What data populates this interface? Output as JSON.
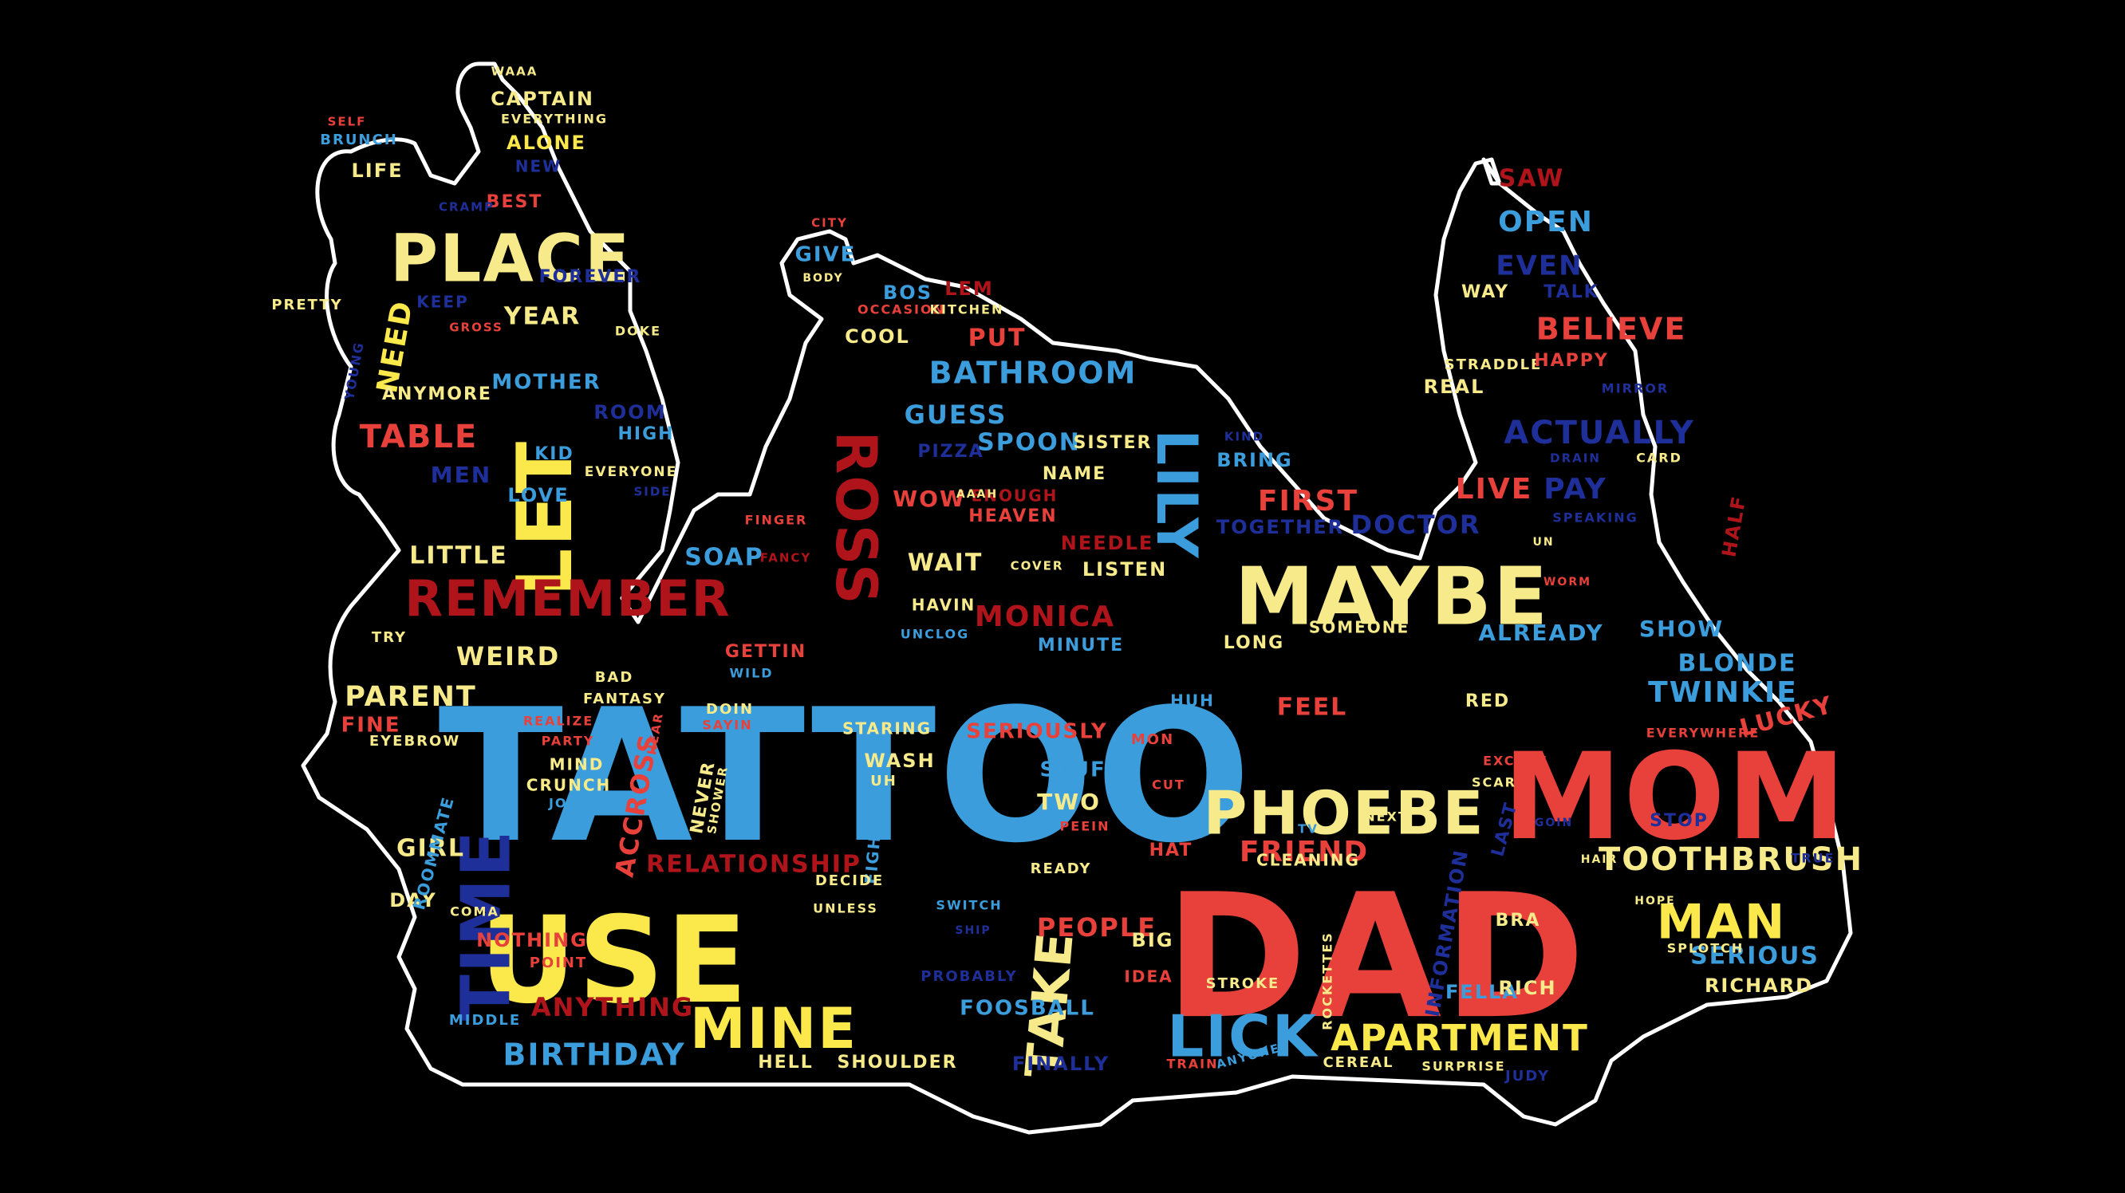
{
  "palette": {
    "background": "#000000",
    "outline": "#ffffff",
    "red": "#e8403a",
    "dark_red": "#b0141b",
    "yellow": "#fbe84b",
    "pale_yellow": "#f7ea8a",
    "blue": "#3b9ddb",
    "navy": "#1f2f9a"
  },
  "words": [
    {
      "text": "TATTOO",
      "color": "blue"
    },
    {
      "text": "DAD",
      "color": "red"
    },
    {
      "text": "MOM",
      "color": "red"
    },
    {
      "text": "USE",
      "color": "yellow"
    },
    {
      "text": "MAYBE",
      "color": "pale_yellow"
    },
    {
      "text": "PLACE",
      "color": "pale_yellow"
    },
    {
      "text": "LET",
      "color": "yellow"
    },
    {
      "text": "TIME",
      "color": "navy"
    },
    {
      "text": "REMEMBER",
      "color": "dark_red"
    },
    {
      "text": "ROSS",
      "color": "dark_red"
    },
    {
      "text": "LILY",
      "color": "blue"
    },
    {
      "text": "TAKE",
      "color": "pale_yellow"
    },
    {
      "text": "PHOEBE",
      "color": "pale_yellow"
    },
    {
      "text": "MINE",
      "color": "yellow"
    },
    {
      "text": "LICK",
      "color": "blue"
    },
    {
      "text": "MAN",
      "color": "yellow"
    },
    {
      "text": "APARTMENT",
      "color": "yellow"
    },
    {
      "text": "TOOTHBRUSH",
      "color": "pale_yellow"
    },
    {
      "text": "BATHROOM",
      "color": "blue"
    },
    {
      "text": "BIRTHDAY",
      "color": "blue"
    },
    {
      "text": "RELATIONSHIP",
      "color": "dark_red"
    },
    {
      "text": "ACTUALLY",
      "color": "navy"
    },
    {
      "text": "BELIEVE",
      "color": "red"
    },
    {
      "text": "TWINKIE",
      "color": "blue"
    },
    {
      "text": "MONICA",
      "color": "dark_red"
    },
    {
      "text": "FRIEND",
      "color": "red"
    },
    {
      "text": "TABLE",
      "color": "red"
    },
    {
      "text": "PARENT",
      "color": "pale_yellow"
    },
    {
      "text": "SERIOUS",
      "color": "blue"
    },
    {
      "text": "RICHARD",
      "color": "pale_yellow"
    },
    {
      "text": "PEOPLE",
      "color": "red"
    },
    {
      "text": "ANYTHING",
      "color": "dark_red"
    },
    {
      "text": "OPEN",
      "color": "blue"
    },
    {
      "text": "EVEN",
      "color": "navy"
    },
    {
      "text": "SAW",
      "color": "dark_red"
    },
    {
      "text": "LIVE",
      "color": "red"
    },
    {
      "text": "PAY",
      "color": "navy"
    },
    {
      "text": "FIRST",
      "color": "red"
    },
    {
      "text": "DOCTOR",
      "color": "navy"
    },
    {
      "text": "ALREADY",
      "color": "blue"
    },
    {
      "text": "SHOW",
      "color": "blue"
    },
    {
      "text": "BLONDE",
      "color": "blue"
    },
    {
      "text": "LUCKY",
      "color": "red"
    },
    {
      "text": "HALF",
      "color": "dark_red"
    },
    {
      "text": "FEEL",
      "color": "red"
    },
    {
      "text": "RED",
      "color": "pale_yellow"
    },
    {
      "text": "HUH",
      "color": "blue"
    },
    {
      "text": "WEIRD",
      "color": "pale_yellow"
    },
    {
      "text": "LITTLE",
      "color": "pale_yellow"
    },
    {
      "text": "GIRL",
      "color": "pale_yellow"
    },
    {
      "text": "DAY",
      "color": "pale_yellow"
    },
    {
      "text": "FINE",
      "color": "red"
    },
    {
      "text": "EYEBROW",
      "color": "pale_yellow"
    },
    {
      "text": "YEAR",
      "color": "pale_yellow"
    },
    {
      "text": "NEED",
      "color": "yellow"
    },
    {
      "text": "MOTHER",
      "color": "blue"
    },
    {
      "text": "ANYMORE",
      "color": "pale_yellow"
    },
    {
      "text": "ROOM",
      "color": "navy"
    },
    {
      "text": "HIGH",
      "color": "blue"
    },
    {
      "text": "KID",
      "color": "blue"
    },
    {
      "text": "EVERYONE",
      "color": "pale_yellow"
    },
    {
      "text": "MEN",
      "color": "navy"
    },
    {
      "text": "LOVE",
      "color": "blue"
    },
    {
      "text": "SIDE",
      "color": "navy"
    },
    {
      "text": "CAPTAIN",
      "color": "pale_yellow"
    },
    {
      "text": "EVERYTHING",
      "color": "pale_yellow"
    },
    {
      "text": "ALONE",
      "color": "yellow"
    },
    {
      "text": "NEW",
      "color": "navy"
    },
    {
      "text": "WAAA",
      "color": "pale_yellow"
    },
    {
      "text": "SELF",
      "color": "red"
    },
    {
      "text": "BRUNCH",
      "color": "blue"
    },
    {
      "text": "LIFE",
      "color": "pale_yellow"
    },
    {
      "text": "BEST",
      "color": "red"
    },
    {
      "text": "CRAMP",
      "color": "navy"
    },
    {
      "text": "FOREVER",
      "color": "navy"
    },
    {
      "text": "KEEP",
      "color": "navy"
    },
    {
      "text": "PRETTY",
      "color": "pale_yellow"
    },
    {
      "text": "GROSS",
      "color": "red"
    },
    {
      "text": "DOKE",
      "color": "pale_yellow"
    },
    {
      "text": "YOUNG",
      "color": "navy"
    },
    {
      "text": "GIVE",
      "color": "blue"
    },
    {
      "text": "CITY",
      "color": "red"
    },
    {
      "text": "BODY",
      "color": "pale_yellow"
    },
    {
      "text": "BOS",
      "color": "blue"
    },
    {
      "text": "LEM",
      "color": "dark_red"
    },
    {
      "text": "OCCASION",
      "color": "red"
    },
    {
      "text": "KITCHEN",
      "color": "pale_yellow"
    },
    {
      "text": "COOL",
      "color": "pale_yellow"
    },
    {
      "text": "PUT",
      "color": "red"
    },
    {
      "text": "GUESS",
      "color": "blue"
    },
    {
      "text": "SPOON",
      "color": "blue"
    },
    {
      "text": "PIZZA",
      "color": "navy"
    },
    {
      "text": "SISTER",
      "color": "pale_yellow"
    },
    {
      "text": "NAME",
      "color": "pale_yellow"
    },
    {
      "text": "WOW",
      "color": "red"
    },
    {
      "text": "ENOUGH",
      "color": "dark_red"
    },
    {
      "text": "HEAVEN",
      "color": "red"
    },
    {
      "text": "SOAP",
      "color": "blue"
    },
    {
      "text": "FINGER",
      "color": "red"
    },
    {
      "text": "FANCY",
      "color": "dark_red"
    },
    {
      "text": "WAIT",
      "color": "pale_yellow"
    },
    {
      "text": "COVER",
      "color": "pale_yellow"
    },
    {
      "text": "NEEDLE",
      "color": "dark_red"
    },
    {
      "text": "LISTEN",
      "color": "pale_yellow"
    },
    {
      "text": "MINUTE",
      "color": "blue"
    },
    {
      "text": "HAVIN",
      "color": "pale_yellow"
    },
    {
      "text": "UNCLOG",
      "color": "blue"
    },
    {
      "text": "GETTIN",
      "color": "red"
    },
    {
      "text": "WILD",
      "color": "blue"
    },
    {
      "text": "DOIN",
      "color": "pale_yellow"
    },
    {
      "text": "SAYIN",
      "color": "red"
    },
    {
      "text": "STARING",
      "color": "pale_yellow"
    },
    {
      "text": "WASH",
      "color": "pale_yellow"
    },
    {
      "text": "UH",
      "color": "pale_yellow"
    },
    {
      "text": "SERIOUSLY",
      "color": "red"
    },
    {
      "text": "STUFF",
      "color": "blue"
    },
    {
      "text": "TWO",
      "color": "pale_yellow"
    },
    {
      "text": "PEEIN",
      "color": "red"
    },
    {
      "text": "READY",
      "color": "pale_yellow"
    },
    {
      "text": "FIGHT",
      "color": "blue"
    },
    {
      "text": "DECIDE",
      "color": "pale_yellow"
    },
    {
      "text": "UNLESS",
      "color": "pale_yellow"
    },
    {
      "text": "SWITCH",
      "color": "blue"
    },
    {
      "text": "SHIP",
      "color": "navy"
    },
    {
      "text": "PROBABLY",
      "color": "navy"
    },
    {
      "text": "FOOSBALL",
      "color": "blue"
    },
    {
      "text": "BIG",
      "color": "pale_yellow"
    },
    {
      "text": "IDEA",
      "color": "red"
    },
    {
      "text": "HELL",
      "color": "pale_yellow"
    },
    {
      "text": "SHOULDER",
      "color": "pale_yellow"
    },
    {
      "text": "FINALLY",
      "color": "navy"
    },
    {
      "text": "TRAIN",
      "color": "red"
    },
    {
      "text": "ANYONE",
      "color": "blue"
    },
    {
      "text": "CEREAL",
      "color": "pale_yellow"
    },
    {
      "text": "SURPRISE",
      "color": "pale_yellow"
    },
    {
      "text": "JUDY",
      "color": "navy"
    },
    {
      "text": "STROKE",
      "color": "pale_yellow"
    },
    {
      "text": "ROCKETTES",
      "color": "pale_yellow"
    },
    {
      "text": "INFORMATION",
      "color": "navy"
    },
    {
      "text": "FELLA",
      "color": "blue"
    },
    {
      "text": "RICH",
      "color": "pale_yellow"
    },
    {
      "text": "BRA",
      "color": "pale_yellow"
    },
    {
      "text": "GOD",
      "color": "red"
    },
    {
      "text": "HOPE",
      "color": "pale_yellow"
    },
    {
      "text": "SPLOTCH",
      "color": "pale_yellow"
    },
    {
      "text": "HAIR",
      "color": "pale_yellow"
    },
    {
      "text": "GOIN",
      "color": "navy"
    },
    {
      "text": "STOP",
      "color": "navy"
    },
    {
      "text": "TRUE",
      "color": "navy"
    },
    {
      "text": "LAST",
      "color": "navy"
    },
    {
      "text": "EXCUSE",
      "color": "red"
    },
    {
      "text": "SCAR",
      "color": "pale_yellow"
    },
    {
      "text": "NEXT",
      "color": "pale_yellow"
    },
    {
      "text": "CLEANING",
      "color": "pale_yellow"
    },
    {
      "text": "TV",
      "color": "blue"
    },
    {
      "text": "HAT",
      "color": "red"
    },
    {
      "text": "CUT",
      "color": "red"
    },
    {
      "text": "MON",
      "color": "red"
    },
    {
      "text": "LONG",
      "color": "pale_yellow"
    },
    {
      "text": "SOMEONE",
      "color": "pale_yellow"
    },
    {
      "text": "TOGETHER",
      "color": "navy"
    },
    {
      "text": "BRING",
      "color": "blue"
    },
    {
      "text": "KIND",
      "color": "navy"
    },
    {
      "text": "CARD",
      "color": "pale_yellow"
    },
    {
      "text": "MIRROR",
      "color": "navy"
    },
    {
      "text": "STRADDLE",
      "color": "pale_yellow"
    },
    {
      "text": "HAPPY",
      "color": "red"
    },
    {
      "text": "REAL",
      "color": "pale_yellow"
    },
    {
      "text": "WAY",
      "color": "pale_yellow"
    },
    {
      "text": "TALK",
      "color": "navy"
    },
    {
      "text": "DRAIN",
      "color": "navy"
    },
    {
      "text": "SPEAKING",
      "color": "navy"
    },
    {
      "text": "UN",
      "color": "pale_yellow"
    },
    {
      "text": "WORM",
      "color": "red"
    },
    {
      "text": "EVERYWHERE",
      "color": "red"
    },
    {
      "text": "NEVER",
      "color": "pale_yellow"
    },
    {
      "text": "ACCROSS",
      "color": "red"
    },
    {
      "text": "SHOWER",
      "color": "pale_yellow"
    },
    {
      "text": "HEAR",
      "color": "red"
    },
    {
      "text": "REALIZE",
      "color": "red"
    },
    {
      "text": "PARTY",
      "color": "red"
    },
    {
      "text": "MIND",
      "color": "pale_yellow"
    },
    {
      "text": "CRUNCH",
      "color": "pale_yellow"
    },
    {
      "text": "JOEY",
      "color": "blue"
    },
    {
      "text": "ROOMMATE",
      "color": "blue"
    },
    {
      "text": "COMA",
      "color": "pale_yellow"
    },
    {
      "text": "NOTHING",
      "color": "red"
    },
    {
      "text": "POINT",
      "color": "red"
    },
    {
      "text": "MIDDLE",
      "color": "blue"
    },
    {
      "text": "TRY",
      "color": "pale_yellow"
    },
    {
      "text": "BAD",
      "color": "pale_yellow"
    },
    {
      "text": "FANTASY",
      "color": "pale_yellow"
    },
    {
      "text": "AAAH",
      "color": "pale_yellow"
    }
  ]
}
